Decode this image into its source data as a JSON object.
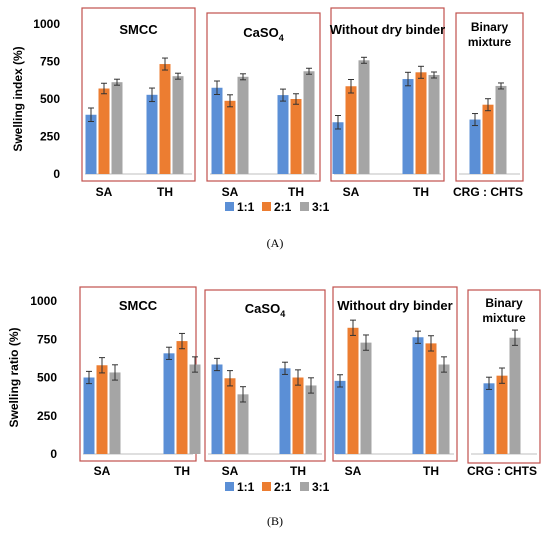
{
  "legend_labels": [
    "1:1",
    "2:1",
    "3:1"
  ],
  "colors": {
    "s1": "#5b8fd6",
    "s2": "#ec7d31",
    "s3": "#a5a5a5",
    "frame": "#c0504d",
    "err": "#333333"
  },
  "chart_data": [
    {
      "type": "bar",
      "caption": "(A)",
      "ylabel": "Swelling index (%)",
      "ylim": [
        0,
        1000
      ],
      "yticks": [
        "0",
        "250",
        "500",
        "750",
        "1000"
      ],
      "legend_position": "bottom-center",
      "groups": [
        {
          "title": "SMCC",
          "sub": "",
          "categories": [
            "SA",
            "TH"
          ],
          "values": [
            [
              395,
              570,
              612
            ],
            [
              528,
              733,
              652
            ]
          ],
          "errors": [
            [
              45,
              35,
              20
            ],
            [
              45,
              40,
              20
            ]
          ]
        },
        {
          "title": "CaSO",
          "sub": "4",
          "categories": [
            "SA",
            "TH"
          ],
          "values": [
            [
              575,
              488,
              648
            ],
            [
              526,
              500,
              685
            ]
          ],
          "errors": [
            [
              45,
              40,
              20
            ],
            [
              40,
              35,
              20
            ]
          ]
        },
        {
          "title": "Without dry binder",
          "sub": "",
          "categories": [
            "SA",
            "TH"
          ],
          "values": [
            [
              345,
              585,
              758
            ],
            [
              633,
              678,
              660
            ]
          ],
          "errors": [
            [
              45,
              45,
              20
            ],
            [
              45,
              40,
              20
            ]
          ]
        },
        {
          "title": "Binary mixture",
          "sub": "",
          "categories": [
            "CRG : CHTS"
          ],
          "values": [
            [
              363,
              462,
              587
            ]
          ],
          "errors": [
            [
              40,
              40,
              20
            ]
          ]
        }
      ]
    },
    {
      "type": "bar",
      "caption": "(B)",
      "ylabel": "Swelling ratio (%)",
      "ylim": [
        0,
        1000
      ],
      "yticks": [
        "0",
        "250",
        "500",
        "750",
        "1000"
      ],
      "legend_position": "bottom-center",
      "groups": [
        {
          "title": "SMCC",
          "sub": "",
          "categories": [
            "SA",
            "TH"
          ],
          "values": [
            [
              500,
              580,
              533
            ],
            [
              658,
              738,
              585
            ]
          ],
          "errors": [
            [
              40,
              50,
              50
            ],
            [
              40,
              50,
              50
            ]
          ]
        },
        {
          "title": "CaSO",
          "sub": "4",
          "categories": [
            "SA",
            "TH"
          ],
          "values": [
            [
              585,
              495,
              390
            ],
            [
              560,
              500,
              448
            ]
          ],
          "errors": [
            [
              40,
              50,
              50
            ],
            [
              40,
              50,
              50
            ]
          ]
        },
        {
          "title": "Without dry binder",
          "sub": "",
          "categories": [
            "SA",
            "TH"
          ],
          "values": [
            [
              478,
              825,
              728
            ],
            [
              763,
              723,
              585
            ]
          ],
          "errors": [
            [
              40,
              50,
              50
            ],
            [
              40,
              50,
              50
            ]
          ]
        },
        {
          "title": "Binary mixture",
          "sub": "",
          "categories": [
            "CRG : CHTS"
          ],
          "values": [
            [
              462,
              512,
              760
            ]
          ],
          "errors": [
            [
              40,
              50,
              50
            ]
          ]
        }
      ]
    }
  ]
}
